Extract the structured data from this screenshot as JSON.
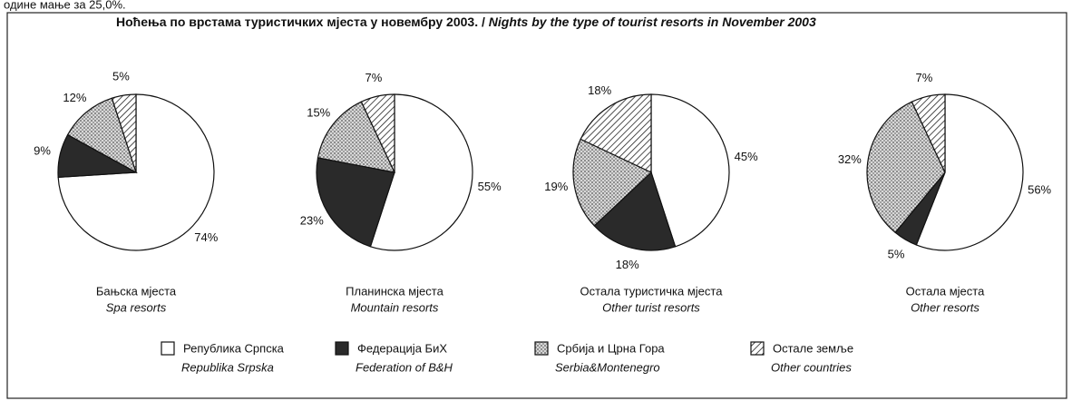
{
  "header_fragment": "одине мање за 25,0%.",
  "title": "Ноћења по врстама туристичких мјеста у новембру 2003.",
  "title_en": "Nights by the type of tourist resorts in November 2003",
  "legend": [
    {
      "name": "Република Српска",
      "name_en": "Republika Srpska",
      "color": "#ffffff",
      "pattern": "solid"
    },
    {
      "name": "Федерација БиХ",
      "name_en": "Federation of B&H",
      "color": "#2a2a2a",
      "pattern": "solid"
    },
    {
      "name": "Србија и Црна Гора",
      "name_en": "Serbia&Montenegro",
      "color": "#9a9a9a",
      "pattern": "dots"
    },
    {
      "name": "Остале земље",
      "name_en": "Other countries",
      "color": "#222222",
      "pattern": "hatch"
    }
  ],
  "chart_data": [
    {
      "type": "pie",
      "title": "Бањска мјеста",
      "subtitle": "Spa resorts",
      "values": [
        74,
        9,
        12,
        5
      ],
      "value_labels": [
        "74%",
        "9%",
        "12%",
        "5%"
      ]
    },
    {
      "type": "pie",
      "title": "Планинска мјеста",
      "subtitle": "Mountain resorts",
      "values": [
        55,
        23,
        15,
        7
      ],
      "value_labels": [
        "55%",
        "23%",
        "15%",
        "7%"
      ]
    },
    {
      "type": "pie",
      "title": "Остала туристичка мјеста",
      "subtitle": "Other turist resorts",
      "values": [
        45,
        18,
        19,
        18
      ],
      "value_labels": [
        "45%",
        "18%",
        "19%",
        "18%"
      ]
    },
    {
      "type": "pie",
      "title": "Остала мјеста",
      "subtitle": "Other resorts",
      "values": [
        56,
        5,
        32,
        7
      ],
      "value_labels": [
        "56%",
        "5%",
        "32%",
        "7%"
      ]
    }
  ]
}
